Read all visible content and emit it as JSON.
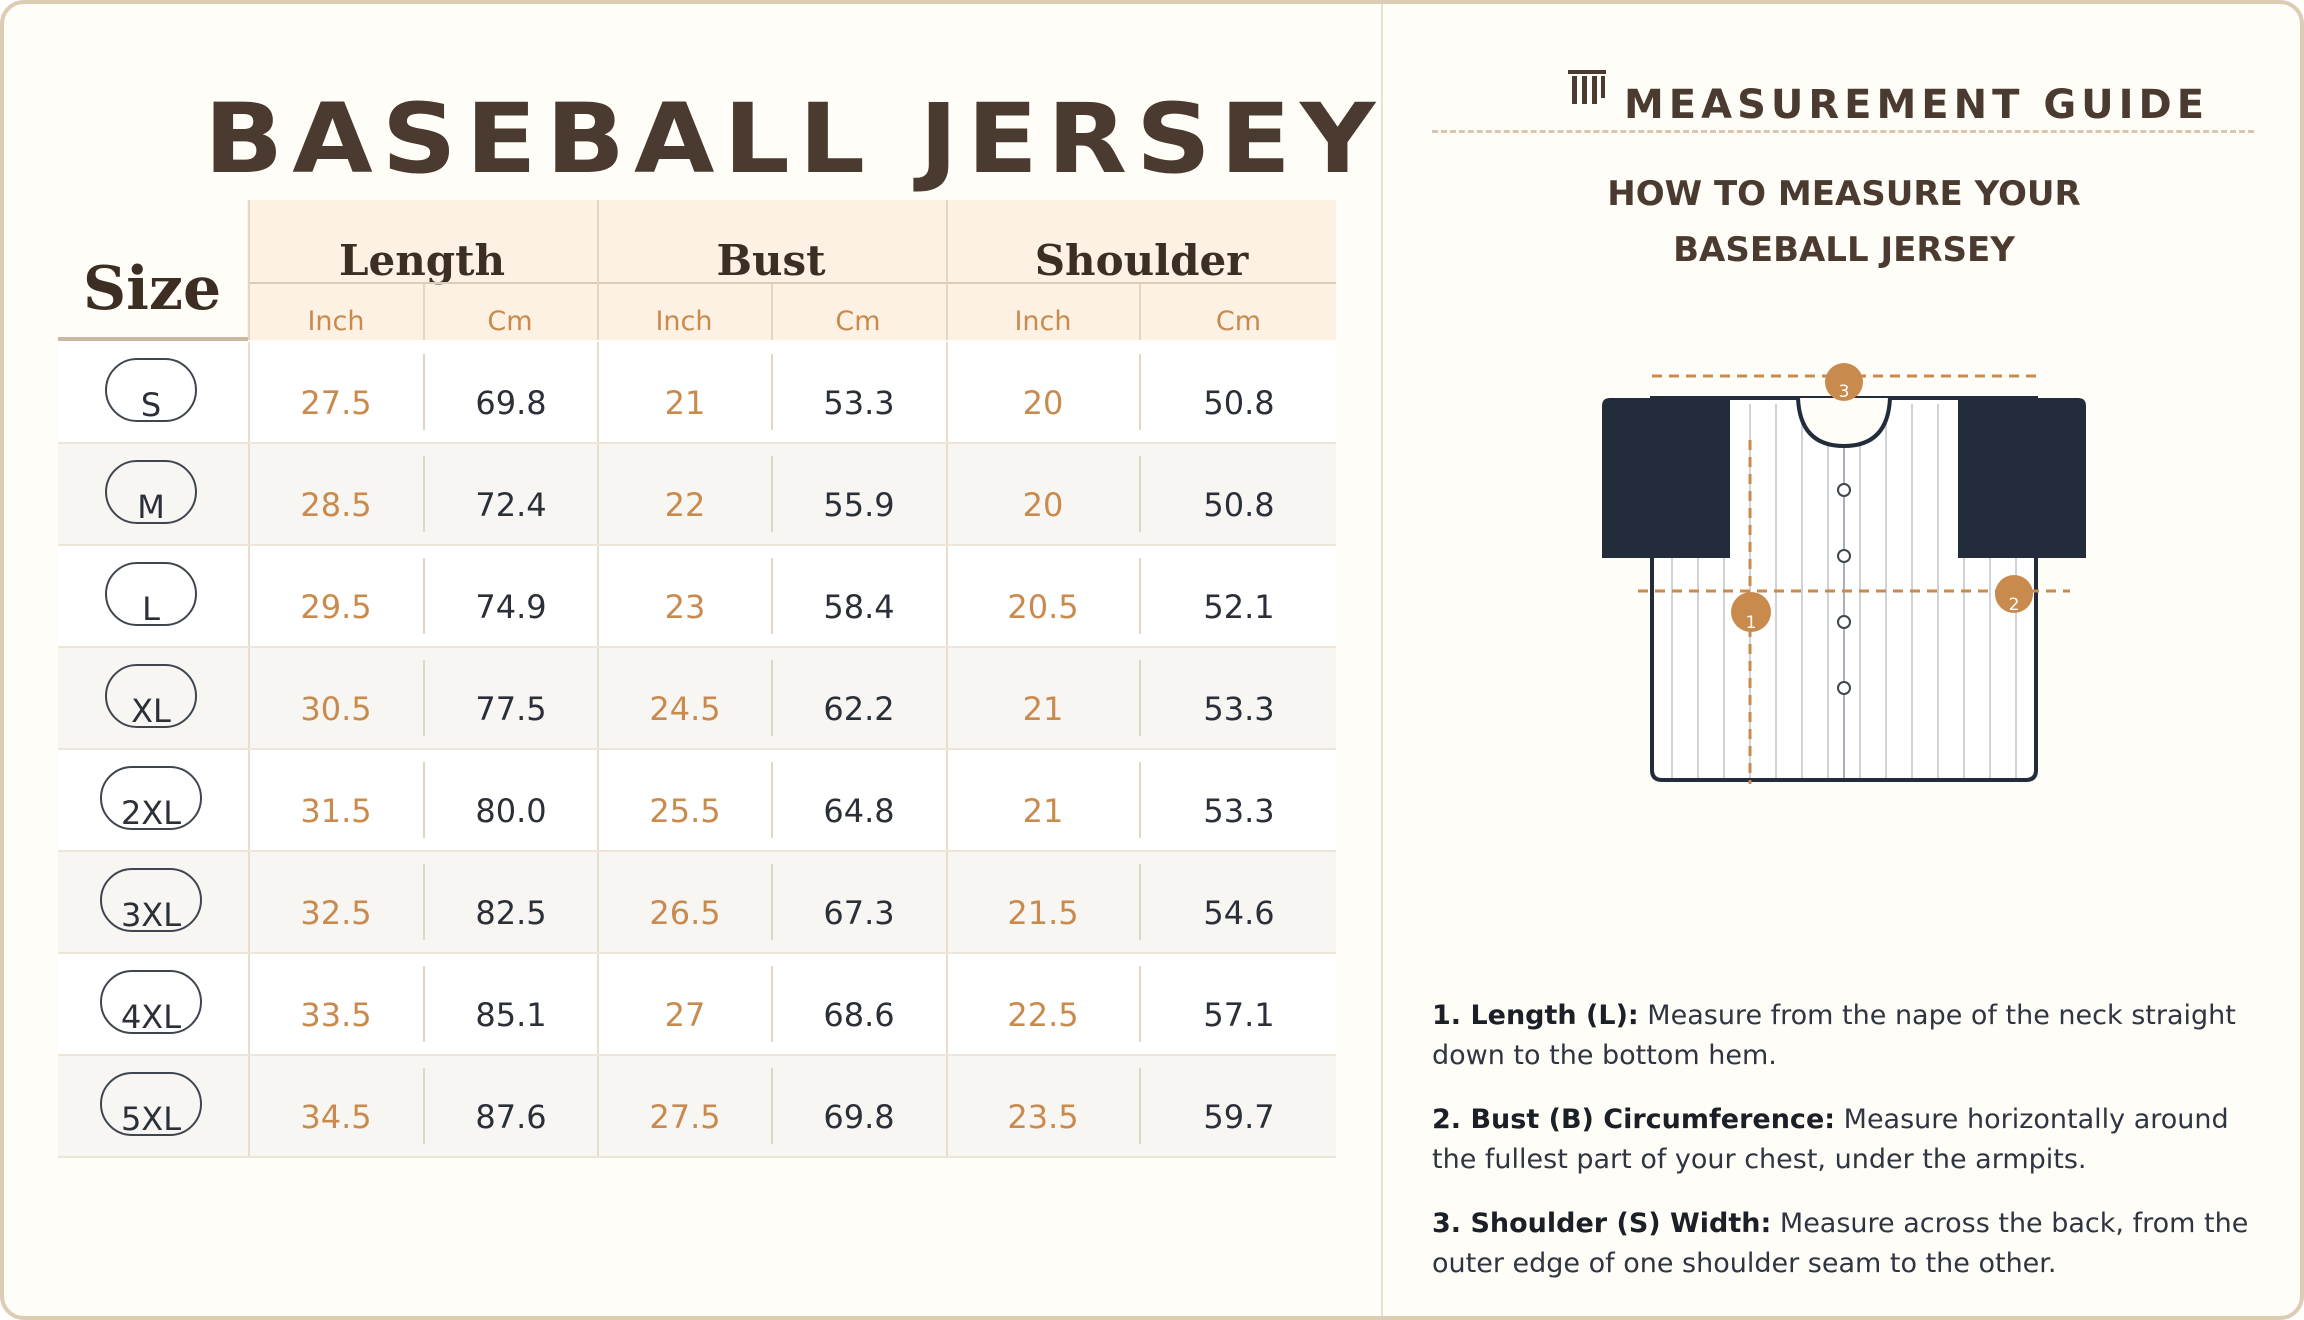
{
  "title": "BASEBALL JERSEY",
  "table": {
    "size_header": "Size",
    "groups": [
      "Length",
      "Bust",
      "Shoulder"
    ],
    "units": [
      "Inch",
      "Cm",
      "Inch",
      "Cm",
      "Inch",
      "Cm"
    ],
    "rows": [
      {
        "size": "S",
        "length_in": "27.5",
        "length_cm": "69.8",
        "bust_in": "21",
        "bust_cm": "53.3",
        "shoulder_in": "20",
        "shoulder_cm": "50.8"
      },
      {
        "size": "M",
        "length_in": "28.5",
        "length_cm": "72.4",
        "bust_in": "22",
        "bust_cm": "55.9",
        "shoulder_in": "20",
        "shoulder_cm": "50.8"
      },
      {
        "size": "L",
        "length_in": "29.5",
        "length_cm": "74.9",
        "bust_in": "23",
        "bust_cm": "58.4",
        "shoulder_in": "20.5",
        "shoulder_cm": "52.1"
      },
      {
        "size": "XL",
        "length_in": "30.5",
        "length_cm": "77.5",
        "bust_in": "24.5",
        "bust_cm": "62.2",
        "shoulder_in": "21",
        "shoulder_cm": "53.3"
      },
      {
        "size": "2XL",
        "length_in": "31.5",
        "length_cm": "80.0",
        "bust_in": "25.5",
        "bust_cm": "64.8",
        "shoulder_in": "21",
        "shoulder_cm": "53.3"
      },
      {
        "size": "3XL",
        "length_in": "32.5",
        "length_cm": "82.5",
        "bust_in": "26.5",
        "bust_cm": "67.3",
        "shoulder_in": "21.5",
        "shoulder_cm": "54.6"
      },
      {
        "size": "4XL",
        "length_in": "33.5",
        "length_cm": "85.1",
        "bust_in": "27",
        "bust_cm": "68.6",
        "shoulder_in": "22.5",
        "shoulder_cm": "57.1"
      },
      {
        "size": "5XL",
        "length_in": "34.5",
        "length_cm": "87.6",
        "bust_in": "27.5",
        "bust_cm": "69.8",
        "shoulder_in": "23.5",
        "shoulder_cm": "59.7"
      }
    ]
  },
  "guide": {
    "title": "MEASUREMENT GUIDE",
    "subtitle_line1": "HOW TO MEASURE YOUR",
    "subtitle_line2": "BASEBALL JERSEY",
    "markers": [
      "1",
      "2",
      "3"
    ],
    "instructions": [
      {
        "label": "1. Length (L):",
        "text": " Measure from the nape of the neck straight down to the bottom hem."
      },
      {
        "label": "2. Bust (B) Circumference:",
        "text": " Measure horizontally around the fullest part of your chest, under the armpits."
      },
      {
        "label": "3. Shoulder (S) Width:",
        "text": " Measure across the back, from the outer edge of one shoulder seam to the other."
      }
    ]
  },
  "colors": {
    "accent": "#c98a4e",
    "title": "#4a3a2f",
    "navy": "#232c3b",
    "border": "#dcccb4"
  },
  "icons": {
    "logo": "columns-logo-icon",
    "jersey": "jersey-diagram"
  }
}
